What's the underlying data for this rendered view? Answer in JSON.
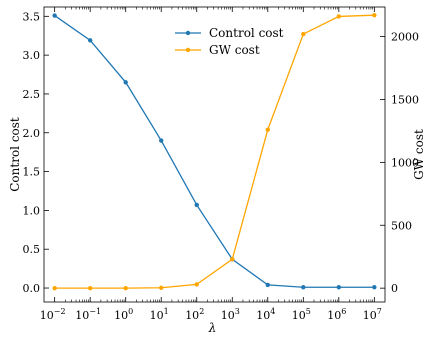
{
  "chart_data": {
    "type": "line",
    "x": [
      -2,
      -1,
      0,
      1,
      2,
      3,
      4,
      5,
      6,
      7
    ],
    "x_tick_labels": [
      {
        "base": "10",
        "exp": "−2"
      },
      {
        "base": "10",
        "exp": "−1"
      },
      {
        "base": "10",
        "exp": "0"
      },
      {
        "base": "10",
        "exp": "1"
      },
      {
        "base": "10",
        "exp": "2"
      },
      {
        "base": "10",
        "exp": "3"
      },
      {
        "base": "10",
        "exp": "4"
      },
      {
        "base": "10",
        "exp": "5"
      },
      {
        "base": "10",
        "exp": "6"
      },
      {
        "base": "10",
        "exp": "7"
      }
    ],
    "xlabel": "λ",
    "x_scale": "log",
    "xlim": [
      -2.3,
      7.3
    ],
    "series": [
      {
        "name": "Control cost",
        "axis": "left",
        "color": "#1f77b4",
        "values": [
          3.51,
          3.19,
          2.65,
          1.9,
          1.07,
          0.37,
          0.04,
          0.01,
          0.01,
          0.01
        ]
      },
      {
        "name": "GW cost",
        "axis": "right",
        "color": "#ffa500",
        "values": [
          0,
          0,
          0,
          3,
          30,
          230,
          1260,
          2020,
          2160,
          2170
        ]
      }
    ],
    "ylabel_left": "Control cost",
    "ylim_left": [
      -0.18,
      3.62
    ],
    "yticks_left": [
      "0.0",
      "0.5",
      "1.0",
      "1.5",
      "2.0",
      "2.5",
      "3.0",
      "3.5"
    ],
    "ylabel_right": "GW cost",
    "ylim_right": [
      -110,
      2235
    ],
    "yticks_right": [
      "0",
      "500",
      "1000",
      "1500",
      "2000"
    ],
    "legend_position": "top-center",
    "grid": false
  }
}
